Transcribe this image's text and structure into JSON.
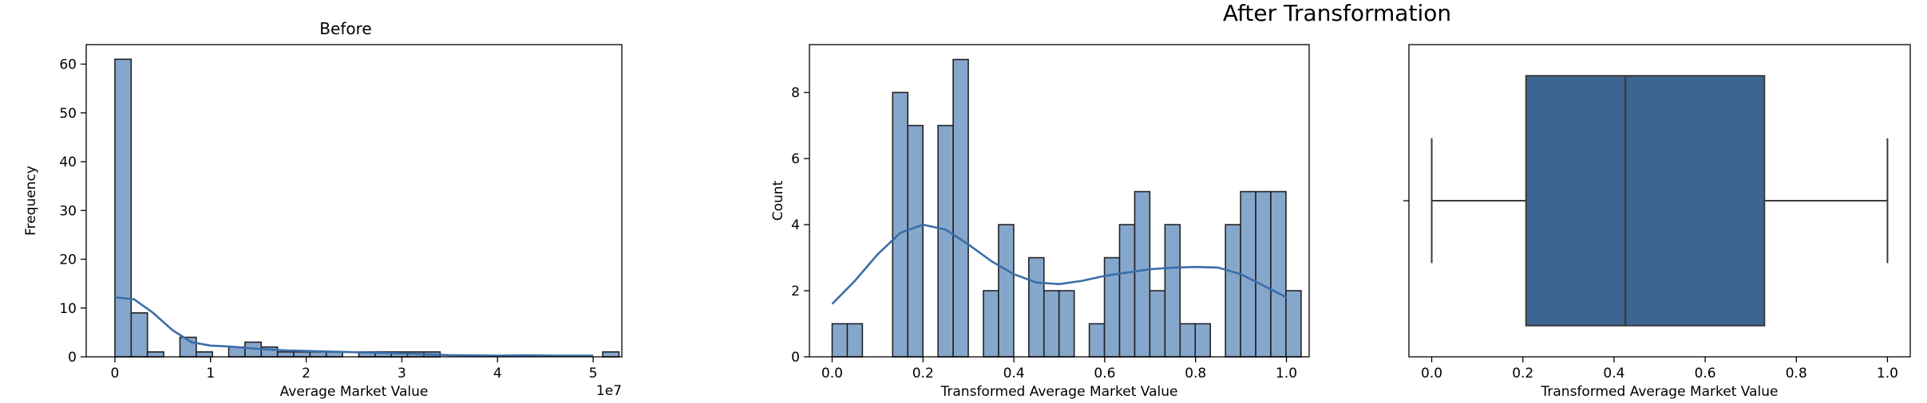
{
  "figure": {
    "suptitle": "After Transformation"
  },
  "chart_data": [
    {
      "type": "bar",
      "subtype": "histogram-with-kde",
      "title": "Before",
      "xlabel": "Average Market Value",
      "ylabel": "Frequency",
      "x_offset_label": "1e7",
      "xlim": [
        -0.3,
        5.3
      ],
      "ylim": [
        0,
        64
      ],
      "x_ticks": [
        0,
        1,
        2,
        3,
        4,
        5
      ],
      "y_ticks": [
        0,
        10,
        20,
        30,
        40,
        50,
        60
      ],
      "bin_start": 0,
      "bin_width": 0.17,
      "counts": [
        61,
        9,
        1,
        0,
        4,
        1,
        0,
        2,
        3,
        2,
        1,
        1,
        1,
        1,
        0,
        1,
        1,
        1,
        1,
        1,
        0,
        0,
        0,
        0,
        0,
        0,
        0,
        0,
        0,
        0,
        1
      ],
      "kde": {
        "x": [
          0,
          0.2,
          0.4,
          0.6,
          0.8,
          1.0,
          1.2,
          1.5,
          1.8,
          2.2,
          2.6,
          3.0,
          3.5,
          4.0,
          4.3,
          4.6,
          5.0
        ],
        "y": [
          12.2,
          11.8,
          9.0,
          5.5,
          3.0,
          2.3,
          2.1,
          1.6,
          1.3,
          1.1,
          0.9,
          0.7,
          0.35,
          0.25,
          0.3,
          0.25,
          0.25
        ]
      },
      "grid": false,
      "colors": {
        "bar": "#86a7cc",
        "edge": "#222222",
        "kde": "#3a6ea8"
      }
    },
    {
      "type": "bar",
      "subtype": "histogram-with-kde",
      "title": "",
      "xlabel": "Transformed Average Market Value",
      "ylabel": "Count",
      "xlim": [
        -0.05,
        1.05
      ],
      "ylim": [
        0,
        9.45
      ],
      "x_ticks": [
        0.0,
        0.2,
        0.4,
        0.6,
        0.8,
        1.0
      ],
      "y_ticks": [
        0,
        2,
        4,
        6,
        8
      ],
      "bin_start": 0,
      "bin_width": 0.0333,
      "counts": [
        1,
        1,
        0,
        0,
        8,
        7,
        0,
        7,
        9,
        0,
        2,
        4,
        0,
        3,
        2,
        2,
        0,
        1,
        3,
        4,
        5,
        2,
        4,
        1,
        1,
        0,
        4,
        5,
        5,
        5,
        2
      ],
      "kde": {
        "x": [
          0,
          0.05,
          0.1,
          0.15,
          0.2,
          0.25,
          0.3,
          0.35,
          0.4,
          0.45,
          0.5,
          0.55,
          0.6,
          0.65,
          0.7,
          0.75,
          0.8,
          0.85,
          0.9,
          0.95,
          1.0
        ],
        "y": [
          1.6,
          2.3,
          3.1,
          3.75,
          4.0,
          3.85,
          3.4,
          2.9,
          2.5,
          2.25,
          2.2,
          2.3,
          2.45,
          2.55,
          2.65,
          2.7,
          2.72,
          2.7,
          2.5,
          2.15,
          1.8
        ]
      },
      "grid": false,
      "colors": {
        "bar": "#86a7cc",
        "edge": "#222222",
        "kde": "#3a6ea8"
      }
    },
    {
      "type": "box",
      "title": "",
      "xlabel": "Transformed Average Market Value",
      "xlim": [
        -0.05,
        1.05
      ],
      "x_ticks": [
        0.0,
        0.2,
        0.4,
        0.6,
        0.8,
        1.0
      ],
      "box": {
        "min": 0.0,
        "q1": 0.207,
        "median": 0.425,
        "q3": 0.73,
        "max": 1.0
      },
      "grid": false,
      "colors": {
        "box": "#3d6591",
        "line": "#3a3a3a"
      }
    }
  ]
}
